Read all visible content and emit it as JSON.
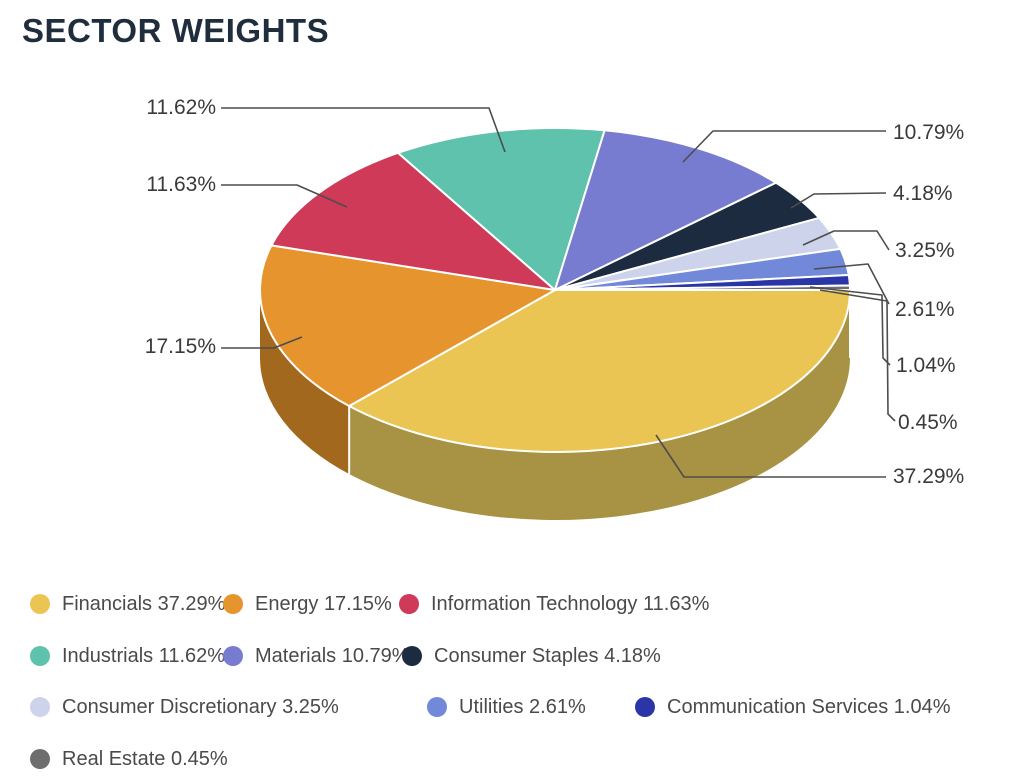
{
  "title": "SECTOR WEIGHTS",
  "chart_data": {
    "type": "pie",
    "title": "SECTOR WEIGHTS",
    "style": "3d",
    "start_angle_deg": 0,
    "direction": "clockwise",
    "legend_position": "bottom",
    "series": [
      {
        "name": "Financials",
        "value": 37.29,
        "label": "37.29%",
        "color": "#EAC553",
        "side_color": "#A89243"
      },
      {
        "name": "Energy",
        "value": 17.15,
        "label": "17.15%",
        "color": "#E5942E",
        "side_color": "#A2691E"
      },
      {
        "name": "Information Technology",
        "value": 11.63,
        "label": "11.63%",
        "color": "#CE3A57"
      },
      {
        "name": "Industrials",
        "value": 11.62,
        "label": "11.62%",
        "color": "#5FC2AD"
      },
      {
        "name": "Materials",
        "value": 10.79,
        "label": "10.79%",
        "color": "#777CD0"
      },
      {
        "name": "Consumer Staples",
        "value": 4.18,
        "label": "4.18%",
        "color": "#1C2B40"
      },
      {
        "name": "Consumer Discretionary",
        "value": 3.25,
        "label": "3.25%",
        "color": "#CDD3EB"
      },
      {
        "name": "Utilities",
        "value": 2.61,
        "label": "2.61%",
        "color": "#7289D9"
      },
      {
        "name": "Communication Services",
        "value": 1.04,
        "label": "1.04%",
        "color": "#2A35A8"
      },
      {
        "name": "Real Estate",
        "value": 0.45,
        "label": "0.45%",
        "color": "#6E6E6E"
      }
    ]
  }
}
